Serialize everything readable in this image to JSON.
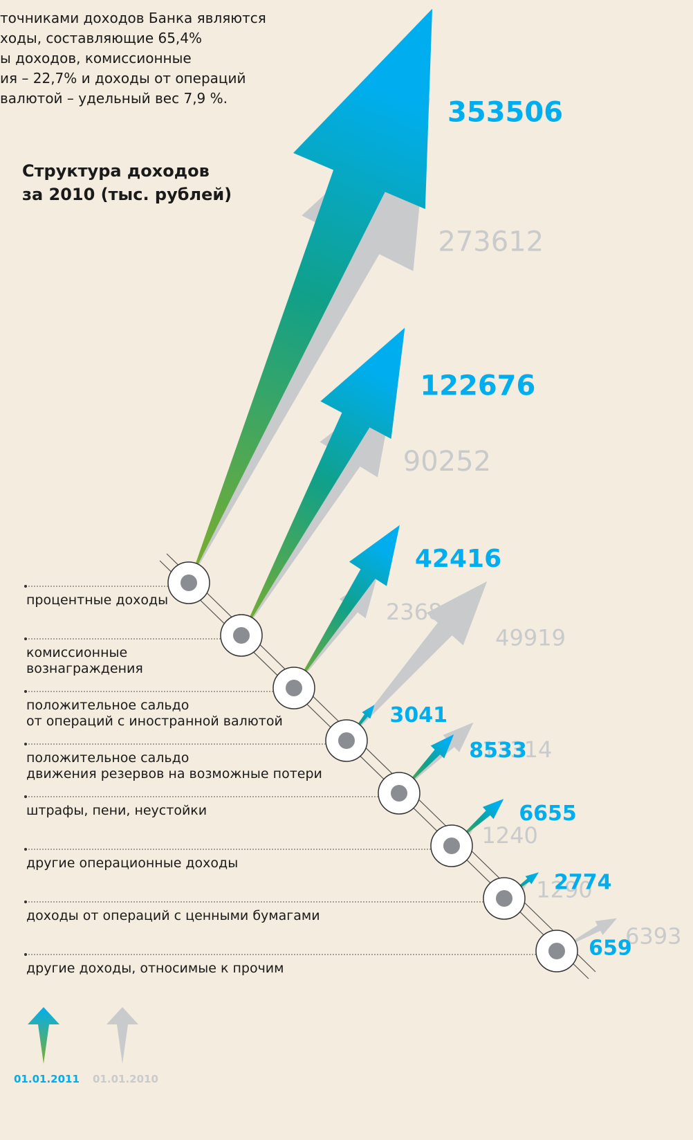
{
  "chart_data": {
    "type": "arrow",
    "text_lines": [
      "точниками доходов Банка являются",
      "ходы, составляющие 65,4%",
      "ы доходов, комиссионные",
      "ия – 22,7% и доходы от операций",
      "валютой – удельный вес 7,9 %."
    ],
    "title": [
      "Структура доходов",
      "за 2010 (тыс. рублей)"
    ],
    "categories": [
      "процентные доходы",
      "комиссионные\nвознаграждения",
      "положительное сальдо\nот операций с иностранной валютой",
      "положительное сальдо\nдвижения резервов на возможные потери",
      "штрафы, пени, неустойки",
      "другие операционные доходы",
      "доходы от операций с ценными бумагами",
      "другие доходы, относимые к прочим"
    ],
    "series": [
      {
        "name": "01.01.2011",
        "color": "#00aeef",
        "values": [
          353506,
          122676,
          42416,
          3041,
          8533,
          6655,
          2774,
          659
        ]
      },
      {
        "name": "01.01.2010",
        "color": "#c9cacc",
        "values": [
          273612,
          90252,
          23682,
          49919,
          13314,
          1240,
          1290,
          6393
        ]
      }
    ]
  }
}
